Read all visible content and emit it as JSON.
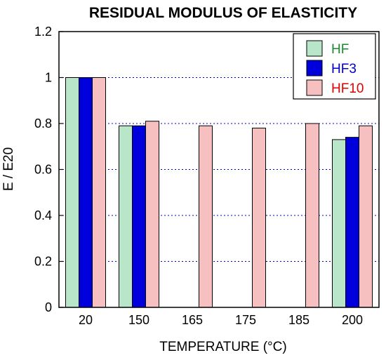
{
  "chart_data": {
    "type": "bar",
    "title": "RESIDUAL MODULUS OF ELASTICITY",
    "xlabel": "TEMPERATURE (°C)",
    "ylabel": "E / E20",
    "ylim": [
      0,
      1.2
    ],
    "yticks": [
      "0",
      "0.2",
      "0.4",
      "0.6",
      "0.8",
      "1",
      "1.2"
    ],
    "grid": "horizontal dotted",
    "legend_position": "top-right",
    "categories": [
      "20",
      "150",
      "165",
      "175",
      "185",
      "200"
    ],
    "series": [
      {
        "name": "HF",
        "fill": "#b9e6c9",
        "text_color": "#1a8a2e",
        "values": [
          1.0,
          0.79,
          null,
          null,
          null,
          0.73
        ]
      },
      {
        "name": "HF3",
        "fill": "#0000dd",
        "text_color": "#0000cc",
        "values": [
          1.0,
          0.79,
          null,
          null,
          null,
          0.74
        ]
      },
      {
        "name": "HF10",
        "fill": "#f7c0c0",
        "text_color": "#e00000",
        "values": [
          1.0,
          0.81,
          0.79,
          0.78,
          0.8,
          0.79
        ]
      }
    ]
  }
}
